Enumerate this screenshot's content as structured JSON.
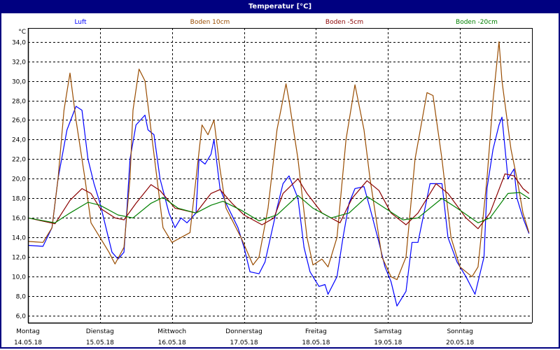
{
  "window": {
    "title": "Temperatur [°C]"
  },
  "chart_data": {
    "type": "line",
    "title": "Temperatur [°C]",
    "ylabel": "°C",
    "ylim": [
      5.3,
      35.4
    ],
    "yticks": [
      "6,0",
      "8,0",
      "10,0",
      "12,0",
      "14,0",
      "16,0",
      "18,0",
      "20,0",
      "22,0",
      "24,0",
      "26,0",
      "28,0",
      "30,0",
      "32,0",
      "34,0"
    ],
    "ytick_values": [
      6,
      8,
      10,
      12,
      14,
      16,
      18,
      20,
      22,
      24,
      26,
      28,
      30,
      32,
      34
    ],
    "xlim": [
      "14.05.18 00:00",
      "21.05.18 00:00"
    ],
    "xticks": [
      {
        "day": "Montag",
        "date": "14.05.18"
      },
      {
        "day": "Dienstag",
        "date": "15.05.18"
      },
      {
        "day": "Mittwoch",
        "date": "16.05.18"
      },
      {
        "day": "Donnerstag",
        "date": "17.05.18"
      },
      {
        "day": "Freitag",
        "date": "18.05.18"
      },
      {
        "day": "Samstag",
        "date": "19.05.18"
      },
      {
        "day": "Sonntag",
        "date": "20.05.18"
      }
    ],
    "grid": true,
    "legend_position": "top",
    "series": [
      {
        "name": "Luft",
        "color": "#0000ff",
        "points": [
          [
            "14.05.18 00:00",
            13.2
          ],
          [
            "14.05.18 05:00",
            13.1
          ],
          [
            "14.05.18 08:00",
            15
          ],
          [
            "14.05.18 10:00",
            20
          ],
          [
            "14.05.18 13:00",
            25
          ],
          [
            "14.05.18 16:00",
            27.4
          ],
          [
            "14.05.18 18:00",
            27
          ],
          [
            "14.05.18 20:00",
            22
          ],
          [
            "14.05.18 22:00",
            19.5
          ],
          [
            "15.05.18 00:00",
            17.5
          ],
          [
            "15.05.18 02:00",
            15
          ],
          [
            "15.05.18 04:00",
            12.5
          ],
          [
            "15.05.18 06:00",
            11.8
          ],
          [
            "15.05.18 08:00",
            12.5
          ],
          [
            "15.05.18 09:00",
            17
          ],
          [
            "15.05.18 10:00",
            22
          ],
          [
            "15.05.18 12:00",
            25.5
          ],
          [
            "15.05.18 15:00",
            26.5
          ],
          [
            "15.05.18 16:00",
            25
          ],
          [
            "15.05.18 18:00",
            24.5
          ],
          [
            "15.05.18 20:00",
            20
          ],
          [
            "15.05.18 23:00",
            16.5
          ],
          [
            "16.05.18 01:00",
            15
          ],
          [
            "16.05.18 03:00",
            16
          ],
          [
            "16.05.18 05:00",
            15.5
          ],
          [
            "16.05.18 08:00",
            16.5
          ],
          [
            "16.05.18 09:00",
            22
          ],
          [
            "16.05.18 11:00",
            21.5
          ],
          [
            "16.05.18 13:00",
            22.5
          ],
          [
            "16.05.18 14:00",
            24
          ],
          [
            "16.05.18 16:00",
            19
          ],
          [
            "16.05.18 18:00",
            17.5
          ],
          [
            "16.05.18 22:00",
            15
          ],
          [
            "17.05.18 00:00",
            13
          ],
          [
            "17.05.18 02:00",
            10.5
          ],
          [
            "17.05.18 05:00",
            10.3
          ],
          [
            "17.05.18 07:00",
            11.5
          ],
          [
            "17.05.18 11:00",
            17
          ],
          [
            "17.05.18 13:00",
            19.5
          ],
          [
            "17.05.18 15:00",
            20.3
          ],
          [
            "17.05.18 18:00",
            18
          ],
          [
            "17.05.18 20:00",
            13
          ],
          [
            "17.05.18 22:00",
            10.5
          ],
          [
            "18.05.18 01:00",
            9
          ],
          [
            "18.05.18 03:00",
            9.2
          ],
          [
            "18.05.18 04:00",
            8.2
          ],
          [
            "18.05.18 07:00",
            10
          ],
          [
            "18.05.18 09:00",
            14
          ],
          [
            "18.05.18 11:00",
            17.5
          ],
          [
            "18.05.18 13:00",
            19
          ],
          [
            "18.05.18 16:00",
            19.2
          ],
          [
            "18.05.18 18:00",
            17
          ],
          [
            "18.05.18 21:00",
            13.5
          ],
          [
            "18.05.18 23:00",
            11
          ],
          [
            "19.05.18 01:00",
            9.5
          ],
          [
            "19.05.18 03:00",
            7
          ],
          [
            "19.05.18 06:00",
            8.5
          ],
          [
            "19.05.18 08:00",
            13.5
          ],
          [
            "19.05.18 10:00",
            13.5
          ],
          [
            "19.05.18 14:00",
            19.5
          ],
          [
            "19.05.18 18:00",
            19.5
          ],
          [
            "19.05.18 20:00",
            14
          ],
          [
            "19.05.18 23:00",
            11.5
          ],
          [
            "20.05.18 02:00",
            10
          ],
          [
            "20.05.18 05:00",
            8.2
          ],
          [
            "20.05.18 08:00",
            12
          ],
          [
            "20.05.18 09:00",
            19
          ],
          [
            "20.05.18 11:00",
            23
          ],
          [
            "20.05.18 13:00",
            25.5
          ],
          [
            "20.05.18 14:00",
            26.3
          ],
          [
            "20.05.18 16:00",
            20
          ],
          [
            "20.05.18 18:00",
            21
          ],
          [
            "20.05.18 19:00",
            18
          ],
          [
            "20.05.18 21:00",
            16
          ],
          [
            "20.05.18 23:00",
            14.4
          ]
        ]
      },
      {
        "name": "Boden 10cm",
        "color": "#994c00",
        "points": [
          [
            "14.05.18 00:00",
            13.6
          ],
          [
            "14.05.18 05:00",
            13.5
          ],
          [
            "14.05.18 08:00",
            15
          ],
          [
            "14.05.18 10:00",
            20
          ],
          [
            "14.05.18 12:00",
            27
          ],
          [
            "14.05.18 14:00",
            30.8
          ],
          [
            "14.05.18 16:00",
            26
          ],
          [
            "14.05.18 19:00",
            20
          ],
          [
            "14.05.18 21:00",
            15.5
          ],
          [
            "15.05.18 00:00",
            14
          ],
          [
            "15.05.18 03:00",
            12.5
          ],
          [
            "15.05.18 05:00",
            11.3
          ],
          [
            "15.05.18 08:00",
            13
          ],
          [
            "15.05.18 10:00",
            20
          ],
          [
            "15.05.18 11:00",
            27
          ],
          [
            "15.05.18 13:00",
            31.2
          ],
          [
            "15.05.18 15:00",
            30
          ],
          [
            "15.05.18 17:00",
            25
          ],
          [
            "15.05.18 19:00",
            20
          ],
          [
            "15.05.18 21:00",
            15
          ],
          [
            "16.05.18 00:00",
            13.5
          ],
          [
            "16.05.18 03:00",
            14
          ],
          [
            "16.05.18 06:00",
            14.5
          ],
          [
            "16.05.18 08:00",
            20
          ],
          [
            "16.05.18 10:00",
            25.5
          ],
          [
            "16.05.18 12:00",
            24.5
          ],
          [
            "16.05.18 14:00",
            26
          ],
          [
            "16.05.18 16:00",
            21
          ],
          [
            "16.05.18 18:00",
            17
          ],
          [
            "16.05.18 23:00",
            14
          ],
          [
            "17.05.18 03:00",
            11.2
          ],
          [
            "17.05.18 05:00",
            12
          ],
          [
            "17.05.18 08:00",
            17
          ],
          [
            "17.05.18 11:00",
            25
          ],
          [
            "17.05.18 14:00",
            29.7
          ],
          [
            "17.05.18 15:00",
            28
          ],
          [
            "17.05.18 18:00",
            22
          ],
          [
            "17.05.18 21:00",
            14
          ],
          [
            "17.05.18 23:00",
            11.2
          ],
          [
            "18.05.18 02:00",
            11.8
          ],
          [
            "18.05.18 04:00",
            11
          ],
          [
            "18.05.18 07:00",
            14
          ],
          [
            "18.05.18 10:00",
            24
          ],
          [
            "18.05.18 13:00",
            29.6
          ],
          [
            "18.05.18 16:00",
            25
          ],
          [
            "18.05.18 18:00",
            20
          ],
          [
            "18.05.18 22:00",
            12
          ],
          [
            "19.05.18 01:00",
            10
          ],
          [
            "19.05.18 03:00",
            9.7
          ],
          [
            "19.05.18 06:00",
            12
          ],
          [
            "19.05.18 09:00",
            22
          ],
          [
            "19.05.18 13:00",
            28.8
          ],
          [
            "19.05.18 15:00",
            28.5
          ],
          [
            "19.05.18 18:00",
            22
          ],
          [
            "19.05.18 21:00",
            14
          ],
          [
            "20.05.18 00:00",
            11
          ],
          [
            "20.05.18 04:00",
            10
          ],
          [
            "20.05.18 06:00",
            11
          ],
          [
            "20.05.18 09:00",
            20
          ],
          [
            "20.05.18 11:00",
            28
          ],
          [
            "20.05.18 13:00",
            34
          ],
          [
            "20.05.18 14:00",
            30
          ],
          [
            "20.05.18 17:00",
            23
          ],
          [
            "20.05.18 19:00",
            20
          ],
          [
            "20.05.18 21:00",
            16.5
          ],
          [
            "20.05.18 23:00",
            14.5
          ]
        ]
      },
      {
        "name": "Boden -5cm",
        "color": "#8b0000",
        "points": [
          [
            "14.05.18 00:00",
            16
          ],
          [
            "14.05.18 09:00",
            15.4
          ],
          [
            "14.05.18 14:00",
            17.8
          ],
          [
            "14.05.18 18:00",
            19
          ],
          [
            "14.05.18 21:00",
            18.5
          ],
          [
            "15.05.18 00:00",
            17
          ],
          [
            "15.05.18 05:00",
            16
          ],
          [
            "15.05.18 08:00",
            15.8
          ],
          [
            "15.05.18 12:00",
            17.5
          ],
          [
            "15.05.18 17:00",
            19.4
          ],
          [
            "15.05.18 20:00",
            18.8
          ],
          [
            "16.05.18 01:00",
            17
          ],
          [
            "16.05.18 08:00",
            16.5
          ],
          [
            "16.05.18 13:00",
            18.5
          ],
          [
            "16.05.18 16:00",
            18.9
          ],
          [
            "16.05.18 20:00",
            17.5
          ],
          [
            "17.05.18 00:00",
            16.3
          ],
          [
            "17.05.18 06:00",
            15.3
          ],
          [
            "17.05.18 10:00",
            16
          ],
          [
            "17.05.18 13:00",
            18.5
          ],
          [
            "17.05.18 18:00",
            20
          ],
          [
            "17.05.18 21:00",
            18.5
          ],
          [
            "18.05.18 02:00",
            16.5
          ],
          [
            "18.05.18 08:00",
            15.5
          ],
          [
            "18.05.18 12:00",
            18
          ],
          [
            "18.05.18 17:00",
            19.8
          ],
          [
            "18.05.18 21:00",
            18.8
          ],
          [
            "19.05.18 01:00",
            16.5
          ],
          [
            "19.05.18 06:00",
            15.3
          ],
          [
            "19.05.18 10:00",
            16.5
          ],
          [
            "19.05.18 16:00",
            19.5
          ],
          [
            "19.05.18 20:00",
            18.5
          ],
          [
            "20.05.18 02:00",
            16
          ],
          [
            "20.05.18 06:00",
            14.9
          ],
          [
            "20.05.18 10:00",
            16.5
          ],
          [
            "20.05.18 15:00",
            20.5
          ],
          [
            "20.05.18 18:00",
            20.3
          ],
          [
            "20.05.18 21:00",
            19
          ],
          [
            "20.05.18 23:00",
            18.5
          ]
        ]
      },
      {
        "name": "Boden -20cm",
        "color": "#008000",
        "points": [
          [
            "14.05.18 00:00",
            16
          ],
          [
            "14.05.18 09:00",
            15.5
          ],
          [
            "14.05.18 14:00",
            16.5
          ],
          [
            "14.05.18 20:00",
            17.6
          ],
          [
            "15.05.18 00:00",
            17.3
          ],
          [
            "15.05.18 06:00",
            16.3
          ],
          [
            "15.05.18 11:00",
            16
          ],
          [
            "15.05.18 17:00",
            17.5
          ],
          [
            "15.05.18 21:00",
            18.1
          ],
          [
            "16.05.18 02:00",
            17
          ],
          [
            "16.05.18 08:00",
            16.5
          ],
          [
            "16.05.18 13:00",
            17.3
          ],
          [
            "16.05.18 17:00",
            17.7
          ],
          [
            "16.05.18 23:00",
            16.8
          ],
          [
            "17.05.18 05:00",
            15.7
          ],
          [
            "17.05.18 11:00",
            16.3
          ],
          [
            "17.05.18 18:00",
            18.3
          ],
          [
            "17.05.18 23:00",
            17
          ],
          [
            "18.05.18 05:00",
            16
          ],
          [
            "18.05.18 11:00",
            16.5
          ],
          [
            "18.05.18 17:00",
            18.2
          ],
          [
            "18.05.18 23:00",
            17
          ],
          [
            "19.05.18 05:00",
            15.8
          ],
          [
            "19.05.18 10:00",
            16
          ],
          [
            "19.05.18 18:00",
            18
          ],
          [
            "19.05.18 23:00",
            17
          ],
          [
            "20.05.18 06:00",
            15.5
          ],
          [
            "20.05.18 10:00",
            16
          ],
          [
            "20.05.18 16:00",
            18.5
          ],
          [
            "20.05.18 20:00",
            18.6
          ],
          [
            "20.05.18 23:00",
            18
          ]
        ]
      }
    ]
  }
}
